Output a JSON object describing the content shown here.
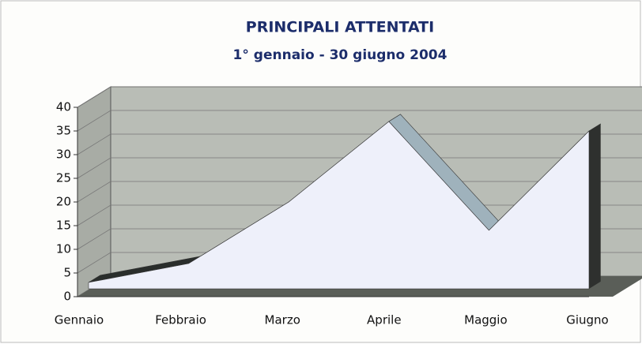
{
  "chart_data": {
    "type": "area3d",
    "title": "PRINCIPALI ATTENTATI",
    "subtitle": "1° gennaio - 30 giugno 2004",
    "categories": [
      "Gennaio",
      "Febbraio",
      "Marzo",
      "Aprile",
      "Maggio",
      "Giugno"
    ],
    "values": [
      3,
      7,
      20,
      37,
      14,
      35
    ],
    "color": "#eef0fa",
    "ylim": [
      0,
      40
    ],
    "yticks": [
      0,
      5,
      10,
      15,
      20,
      25,
      30,
      35,
      40
    ],
    "grid": true
  }
}
